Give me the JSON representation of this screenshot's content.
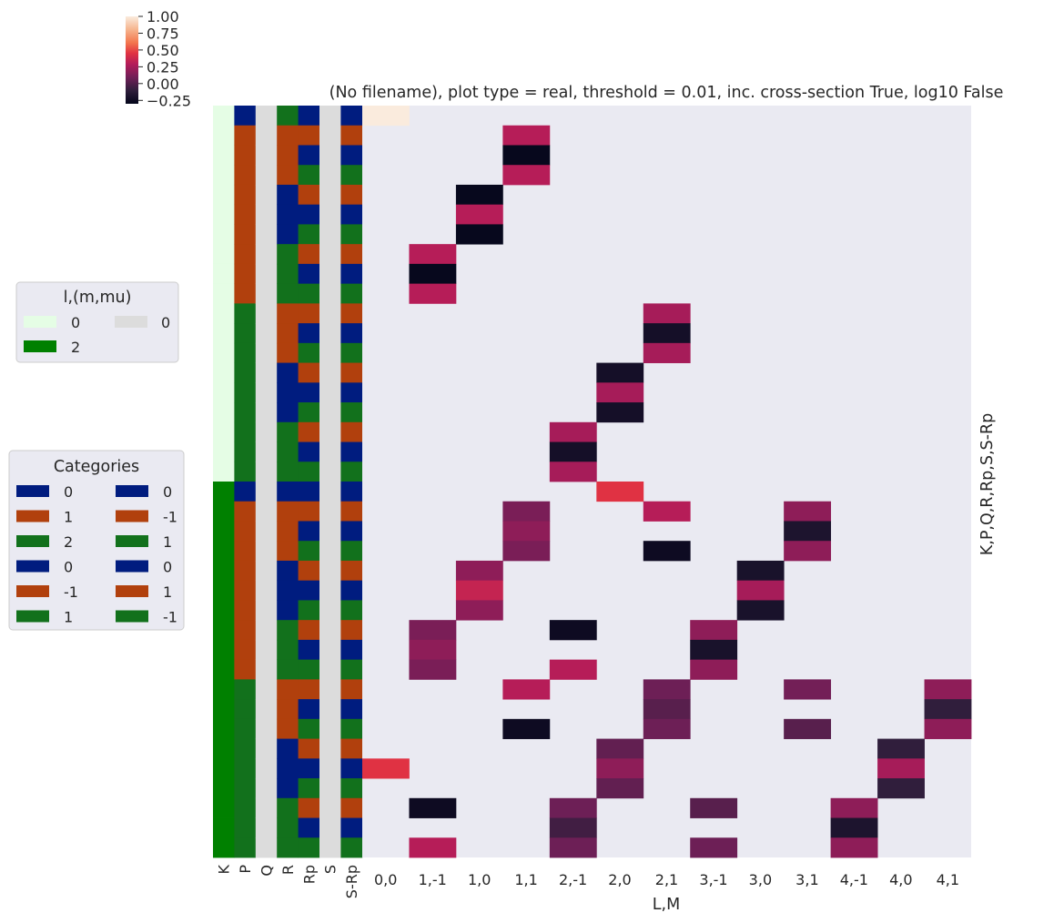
{
  "chart_data": {
    "type": "heatmap",
    "title": "(No filename), plot type = real, threshold = 0.01, inc. cross-section True, log10 False",
    "xlabel": "L,M",
    "ylabel": "K,P,Q,R,Rp,S,S-Rp",
    "x_categories": [
      "0,0",
      "1,-1",
      "1,0",
      "1,1",
      "2,-1",
      "2,0",
      "2,1",
      "3,-1",
      "3,0",
      "3,1",
      "4,-1",
      "4,0",
      "4,1"
    ],
    "row_label_columns": [
      "K",
      "P",
      "Q",
      "R",
      "Rp",
      "S",
      "S-Rp"
    ],
    "colorbar": {
      "ticks": [
        1.0,
        0.75,
        0.5,
        0.25,
        0.0,
        -0.25
      ],
      "tick_labels": [
        "1.00",
        "0.75",
        "0.50",
        "0.25",
        "0.00",
        "−0.25"
      ],
      "vmin": -0.3,
      "vmax": 1.0,
      "colormap": "rocket"
    },
    "values": [
      [
        1.0,
        null,
        null,
        null,
        null,
        null,
        null,
        null,
        null,
        null,
        null,
        null,
        null
      ],
      [
        null,
        null,
        null,
        0.3,
        null,
        null,
        null,
        null,
        null,
        null,
        null,
        null,
        null
      ],
      [
        null,
        null,
        null,
        -0.28,
        null,
        null,
        null,
        null,
        null,
        null,
        null,
        null,
        null
      ],
      [
        null,
        null,
        null,
        0.3,
        null,
        null,
        null,
        null,
        null,
        null,
        null,
        null,
        null
      ],
      [
        null,
        null,
        -0.28,
        null,
        null,
        null,
        null,
        null,
        null,
        null,
        null,
        null,
        null
      ],
      [
        null,
        null,
        0.3,
        null,
        null,
        null,
        null,
        null,
        null,
        null,
        null,
        null,
        null
      ],
      [
        null,
        null,
        -0.28,
        null,
        null,
        null,
        null,
        null,
        null,
        null,
        null,
        null,
        null
      ],
      [
        null,
        0.3,
        null,
        null,
        null,
        null,
        null,
        null,
        null,
        null,
        null,
        null,
        null
      ],
      [
        null,
        -0.28,
        null,
        null,
        null,
        null,
        null,
        null,
        null,
        null,
        null,
        null,
        null
      ],
      [
        null,
        0.3,
        null,
        null,
        null,
        null,
        null,
        null,
        null,
        null,
        null,
        null,
        null
      ],
      [
        null,
        null,
        null,
        null,
        null,
        null,
        0.25,
        null,
        null,
        null,
        null,
        null,
        null
      ],
      [
        null,
        null,
        null,
        null,
        null,
        null,
        -0.22,
        null,
        null,
        null,
        null,
        null,
        null
      ],
      [
        null,
        null,
        null,
        null,
        null,
        null,
        0.25,
        null,
        null,
        null,
        null,
        null,
        null
      ],
      [
        null,
        null,
        null,
        null,
        null,
        -0.22,
        null,
        null,
        null,
        null,
        null,
        null,
        null
      ],
      [
        null,
        null,
        null,
        null,
        null,
        0.25,
        null,
        null,
        null,
        null,
        null,
        null,
        null
      ],
      [
        null,
        null,
        null,
        null,
        null,
        -0.22,
        null,
        null,
        null,
        null,
        null,
        null,
        null
      ],
      [
        null,
        null,
        null,
        null,
        0.25,
        null,
        null,
        null,
        null,
        null,
        null,
        null,
        null
      ],
      [
        null,
        null,
        null,
        null,
        -0.22,
        null,
        null,
        null,
        null,
        null,
        null,
        null,
        null
      ],
      [
        null,
        null,
        null,
        null,
        0.25,
        null,
        null,
        null,
        null,
        null,
        null,
        null,
        null
      ],
      [
        null,
        null,
        null,
        null,
        null,
        0.45,
        null,
        null,
        null,
        null,
        null,
        null,
        null
      ],
      [
        null,
        null,
        null,
        0.12,
        null,
        null,
        0.3,
        null,
        null,
        0.18,
        null,
        null,
        null
      ],
      [
        null,
        null,
        null,
        0.18,
        null,
        null,
        null,
        null,
        null,
        -0.18,
        null,
        null,
        null
      ],
      [
        null,
        null,
        null,
        0.12,
        null,
        null,
        -0.25,
        null,
        null,
        0.18,
        null,
        null,
        null
      ],
      [
        null,
        null,
        0.18,
        null,
        null,
        null,
        null,
        null,
        -0.2,
        null,
        null,
        null,
        null
      ],
      [
        null,
        null,
        0.35,
        null,
        null,
        null,
        null,
        null,
        0.25,
        null,
        null,
        null,
        null
      ],
      [
        null,
        null,
        0.18,
        null,
        null,
        null,
        null,
        null,
        -0.2,
        null,
        null,
        null,
        null
      ],
      [
        null,
        0.12,
        null,
        null,
        -0.25,
        null,
        null,
        0.18,
        null,
        null,
        null,
        null,
        null
      ],
      [
        null,
        0.18,
        null,
        null,
        null,
        null,
        null,
        -0.2,
        null,
        null,
        null,
        null,
        null
      ],
      [
        null,
        0.12,
        null,
        null,
        0.3,
        null,
        null,
        0.18,
        null,
        null,
        null,
        null,
        null
      ],
      [
        null,
        null,
        null,
        0.3,
        null,
        null,
        0.08,
        null,
        null,
        0.1,
        null,
        null,
        0.18
      ],
      [
        null,
        null,
        null,
        null,
        null,
        null,
        0.02,
        null,
        null,
        null,
        null,
        null,
        -0.1
      ],
      [
        null,
        null,
        null,
        -0.25,
        null,
        null,
        0.08,
        null,
        null,
        0.02,
        null,
        null,
        0.18
      ],
      [
        null,
        null,
        null,
        null,
        null,
        0.05,
        null,
        null,
        null,
        null,
        null,
        -0.1,
        null
      ],
      [
        0.45,
        null,
        null,
        null,
        null,
        0.18,
        null,
        null,
        null,
        null,
        null,
        0.25,
        null
      ],
      [
        null,
        null,
        null,
        null,
        null,
        0.05,
        null,
        null,
        null,
        null,
        null,
        -0.1,
        null
      ],
      [
        null,
        -0.25,
        null,
        null,
        0.08,
        null,
        null,
        0.02,
        null,
        null,
        0.18,
        null,
        null
      ],
      [
        null,
        null,
        null,
        null,
        -0.05,
        null,
        null,
        null,
        null,
        null,
        -0.18,
        null,
        null
      ],
      [
        null,
        0.3,
        null,
        null,
        0.08,
        null,
        null,
        0.08,
        null,
        null,
        0.18,
        null,
        null
      ]
    ],
    "row_categories": {
      "K": [
        0,
        0,
        0,
        0,
        0,
        0,
        0,
        0,
        0,
        0,
        0,
        0,
        0,
        0,
        0,
        0,
        0,
        0,
        0,
        2,
        2,
        2,
        2,
        2,
        2,
        2,
        2,
        2,
        2,
        2,
        2,
        2,
        2,
        2,
        2,
        2,
        2,
        2
      ],
      "P": [
        0,
        1,
        1,
        1,
        1,
        1,
        1,
        1,
        1,
        1,
        2,
        2,
        2,
        2,
        2,
        2,
        2,
        2,
        2,
        0,
        1,
        1,
        1,
        1,
        1,
        1,
        1,
        1,
        1,
        2,
        2,
        2,
        2,
        2,
        2,
        2,
        2,
        2
      ],
      "Q": [
        0,
        0,
        0,
        0,
        0,
        0,
        0,
        0,
        0,
        0,
        0,
        0,
        0,
        0,
        0,
        0,
        0,
        0,
        0,
        0,
        0,
        0,
        0,
        0,
        0,
        0,
        0,
        0,
        0,
        0,
        0,
        0,
        0,
        0,
        0,
        0,
        0,
        0
      ],
      "R": [
        1,
        -1,
        -1,
        -1,
        0,
        0,
        0,
        1,
        1,
        1,
        -1,
        -1,
        -1,
        0,
        0,
        0,
        1,
        1,
        1,
        0,
        -1,
        -1,
        -1,
        0,
        0,
        0,
        1,
        1,
        1,
        -1,
        -1,
        -1,
        0,
        0,
        0,
        1,
        1,
        1
      ],
      "Rp": [
        0,
        -1,
        0,
        1,
        -1,
        0,
        1,
        -1,
        0,
        1,
        -1,
        0,
        1,
        -1,
        0,
        1,
        -1,
        0,
        1,
        0,
        -1,
        0,
        1,
        -1,
        0,
        1,
        -1,
        0,
        1,
        -1,
        0,
        1,
        -1,
        0,
        1,
        -1,
        0,
        1
      ],
      "S": [
        0,
        0,
        0,
        0,
        0,
        0,
        0,
        0,
        0,
        0,
        0,
        0,
        0,
        0,
        0,
        0,
        0,
        0,
        0,
        0,
        0,
        0,
        0,
        0,
        0,
        0,
        0,
        0,
        0,
        0,
        0,
        0,
        0,
        0,
        0,
        0,
        0,
        0
      ],
      "S-Rp": [
        0,
        1,
        0,
        -1,
        1,
        0,
        -1,
        1,
        0,
        -1,
        1,
        0,
        -1,
        1,
        0,
        -1,
        1,
        0,
        -1,
        0,
        1,
        0,
        -1,
        1,
        0,
        -1,
        1,
        0,
        -1,
        1,
        0,
        -1,
        1,
        0,
        -1,
        1,
        0,
        -1
      ]
    }
  },
  "legends": {
    "lmmu": {
      "title": "l,(m,mu)",
      "entries": [
        {
          "label": "0",
          "color": "#e5fde5"
        },
        {
          "label": "0",
          "color": "#dcdcdc"
        },
        {
          "label": "2",
          "color": "#008000"
        }
      ]
    },
    "categories": {
      "title": "Categories",
      "entries": [
        {
          "label": "0",
          "color": "#001c7f"
        },
        {
          "label": "0",
          "color": "#001c7f"
        },
        {
          "label": "1",
          "color": "#b1400d"
        },
        {
          "label": "-1",
          "color": "#b1400d"
        },
        {
          "label": "2",
          "color": "#12711c"
        },
        {
          "label": "1",
          "color": "#12711c"
        },
        {
          "label": "0",
          "color": "#001c7f"
        },
        {
          "label": "0",
          "color": "#001c7f"
        },
        {
          "label": "-1",
          "color": "#b1400d"
        },
        {
          "label": "1",
          "color": "#b1400d"
        },
        {
          "label": "1",
          "color": "#12711c"
        },
        {
          "label": "-1",
          "color": "#12711c"
        }
      ]
    }
  },
  "colors": {
    "background": "#eaeaf2",
    "K": {
      "0": "#e5fde5",
      "2": "#008000"
    },
    "P": {
      "0": "#001c7f",
      "1": "#b1400d",
      "2": "#12711c"
    },
    "Q": {
      "0": "#dcdcdc"
    },
    "R": {
      "-1": "#b1400d",
      "0": "#001c7f",
      "1": "#12711c"
    },
    "Rp": {
      "-1": "#b1400d",
      "0": "#001c7f",
      "1": "#12711c"
    },
    "S": {
      "0": "#dcdcdc"
    },
    "S-Rp": {
      "-1": "#12711c",
      "0": "#001c7f",
      "1": "#b1400d"
    }
  }
}
